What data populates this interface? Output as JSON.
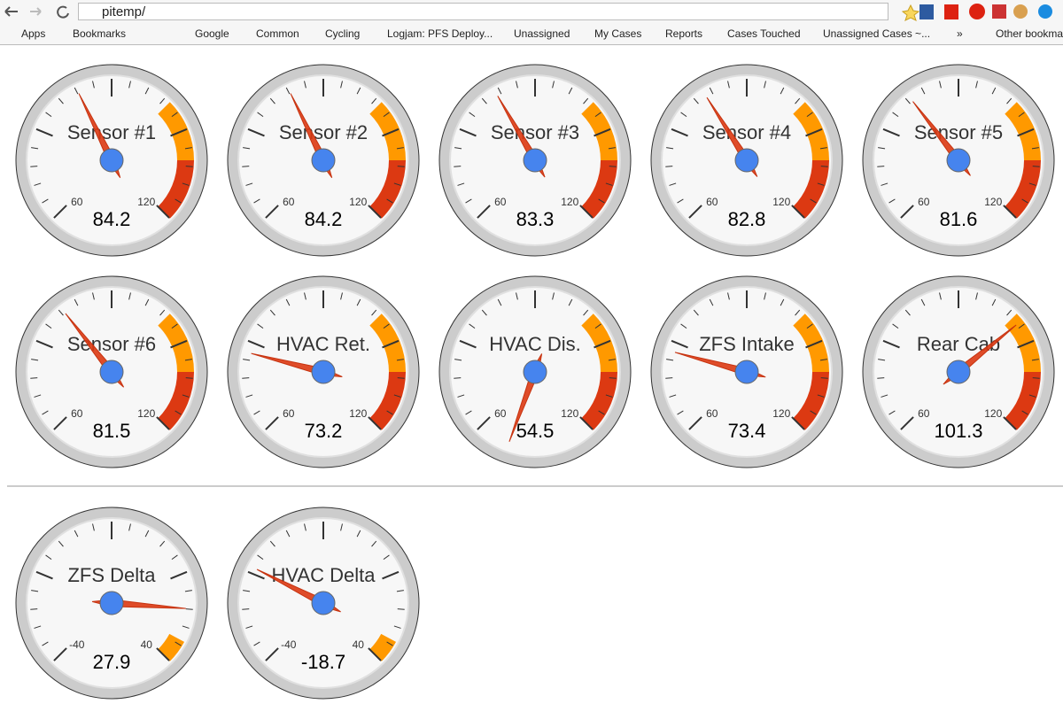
{
  "browser": {
    "url": "pitemp/",
    "bookmarks": [
      "Apps",
      "Bookmarks",
      "Google",
      "Common",
      "Cycling",
      "Logjam: PFS Deploy...",
      "Unassigned",
      "My Cases",
      "Reports",
      "Cases Touched",
      "Unassigned Cases ~...",
      "»",
      "Other bookmarks"
    ]
  },
  "temperature_gauges": [
    {
      "label": "Sensor #1",
      "value": 84.2,
      "lim": [
        60,
        120
      ],
      "ticks": [
        60,
        120
      ],
      "bands": [
        {
          "from": 100,
          "to": 110,
          "color": "#ff9900"
        },
        {
          "from": 110,
          "to": 120,
          "color": "#dc3912"
        }
      ]
    },
    {
      "label": "Sensor #2",
      "value": 84.2,
      "lim": [
        60,
        120
      ],
      "ticks": [
        60,
        120
      ],
      "bands": [
        {
          "from": 100,
          "to": 110,
          "color": "#ff9900"
        },
        {
          "from": 110,
          "to": 120,
          "color": "#dc3912"
        }
      ]
    },
    {
      "label": "Sensor #3",
      "value": 83.3,
      "lim": [
        60,
        120
      ],
      "ticks": [
        60,
        120
      ],
      "bands": [
        {
          "from": 100,
          "to": 110,
          "color": "#ff9900"
        },
        {
          "from": 110,
          "to": 120,
          "color": "#dc3912"
        }
      ]
    },
    {
      "label": "Sensor #4",
      "value": 82.8,
      "lim": [
        60,
        120
      ],
      "ticks": [
        60,
        120
      ],
      "bands": [
        {
          "from": 100,
          "to": 110,
          "color": "#ff9900"
        },
        {
          "from": 110,
          "to": 120,
          "color": "#dc3912"
        }
      ]
    },
    {
      "label": "Sensor #5",
      "value": 81.6,
      "lim": [
        60,
        120
      ],
      "ticks": [
        60,
        120
      ],
      "bands": [
        {
          "from": 100,
          "to": 110,
          "color": "#ff9900"
        },
        {
          "from": 110,
          "to": 120,
          "color": "#dc3912"
        }
      ]
    },
    {
      "label": "Sensor #6",
      "value": 81.5,
      "lim": [
        60,
        120
      ],
      "ticks": [
        60,
        120
      ],
      "bands": [
        {
          "from": 100,
          "to": 110,
          "color": "#ff9900"
        },
        {
          "from": 110,
          "to": 120,
          "color": "#dc3912"
        }
      ]
    },
    {
      "label": "HVAC Ret.",
      "value": 73.2,
      "lim": [
        60,
        120
      ],
      "ticks": [
        60,
        120
      ],
      "bands": [
        {
          "from": 100,
          "to": 110,
          "color": "#ff9900"
        },
        {
          "from": 110,
          "to": 120,
          "color": "#dc3912"
        }
      ]
    },
    {
      "label": "HVAC Dis.",
      "value": 54.5,
      "lim": [
        60,
        120
      ],
      "ticks": [
        60,
        120
      ],
      "bands": [
        {
          "from": 100,
          "to": 110,
          "color": "#ff9900"
        },
        {
          "from": 110,
          "to": 120,
          "color": "#dc3912"
        }
      ]
    },
    {
      "label": "ZFS Intake",
      "value": 73.4,
      "lim": [
        60,
        120
      ],
      "ticks": [
        60,
        120
      ],
      "bands": [
        {
          "from": 100,
          "to": 110,
          "color": "#ff9900"
        },
        {
          "from": 110,
          "to": 120,
          "color": "#dc3912"
        }
      ]
    },
    {
      "label": "Rear Cab",
      "value": 101.3,
      "lim": [
        60,
        120
      ],
      "ticks": [
        60,
        120
      ],
      "bands": [
        {
          "from": 100,
          "to": 110,
          "color": "#ff9900"
        },
        {
          "from": 110,
          "to": 120,
          "color": "#dc3912"
        }
      ]
    }
  ],
  "delta_gauges": [
    {
      "label": "ZFS Delta",
      "value": 27.9,
      "lim": [
        -40,
        40
      ],
      "ticks": [
        -40,
        40
      ],
      "bands": [
        {
          "from": 35,
          "to": 40,
          "color": "#ff9900"
        }
      ]
    },
    {
      "label": "HVAC Delta",
      "value": -18.7,
      "lim": [
        -40,
        40
      ],
      "ticks": [
        -40,
        40
      ],
      "bands": [
        {
          "from": 35,
          "to": 40,
          "color": "#ff9900"
        }
      ]
    }
  ]
}
